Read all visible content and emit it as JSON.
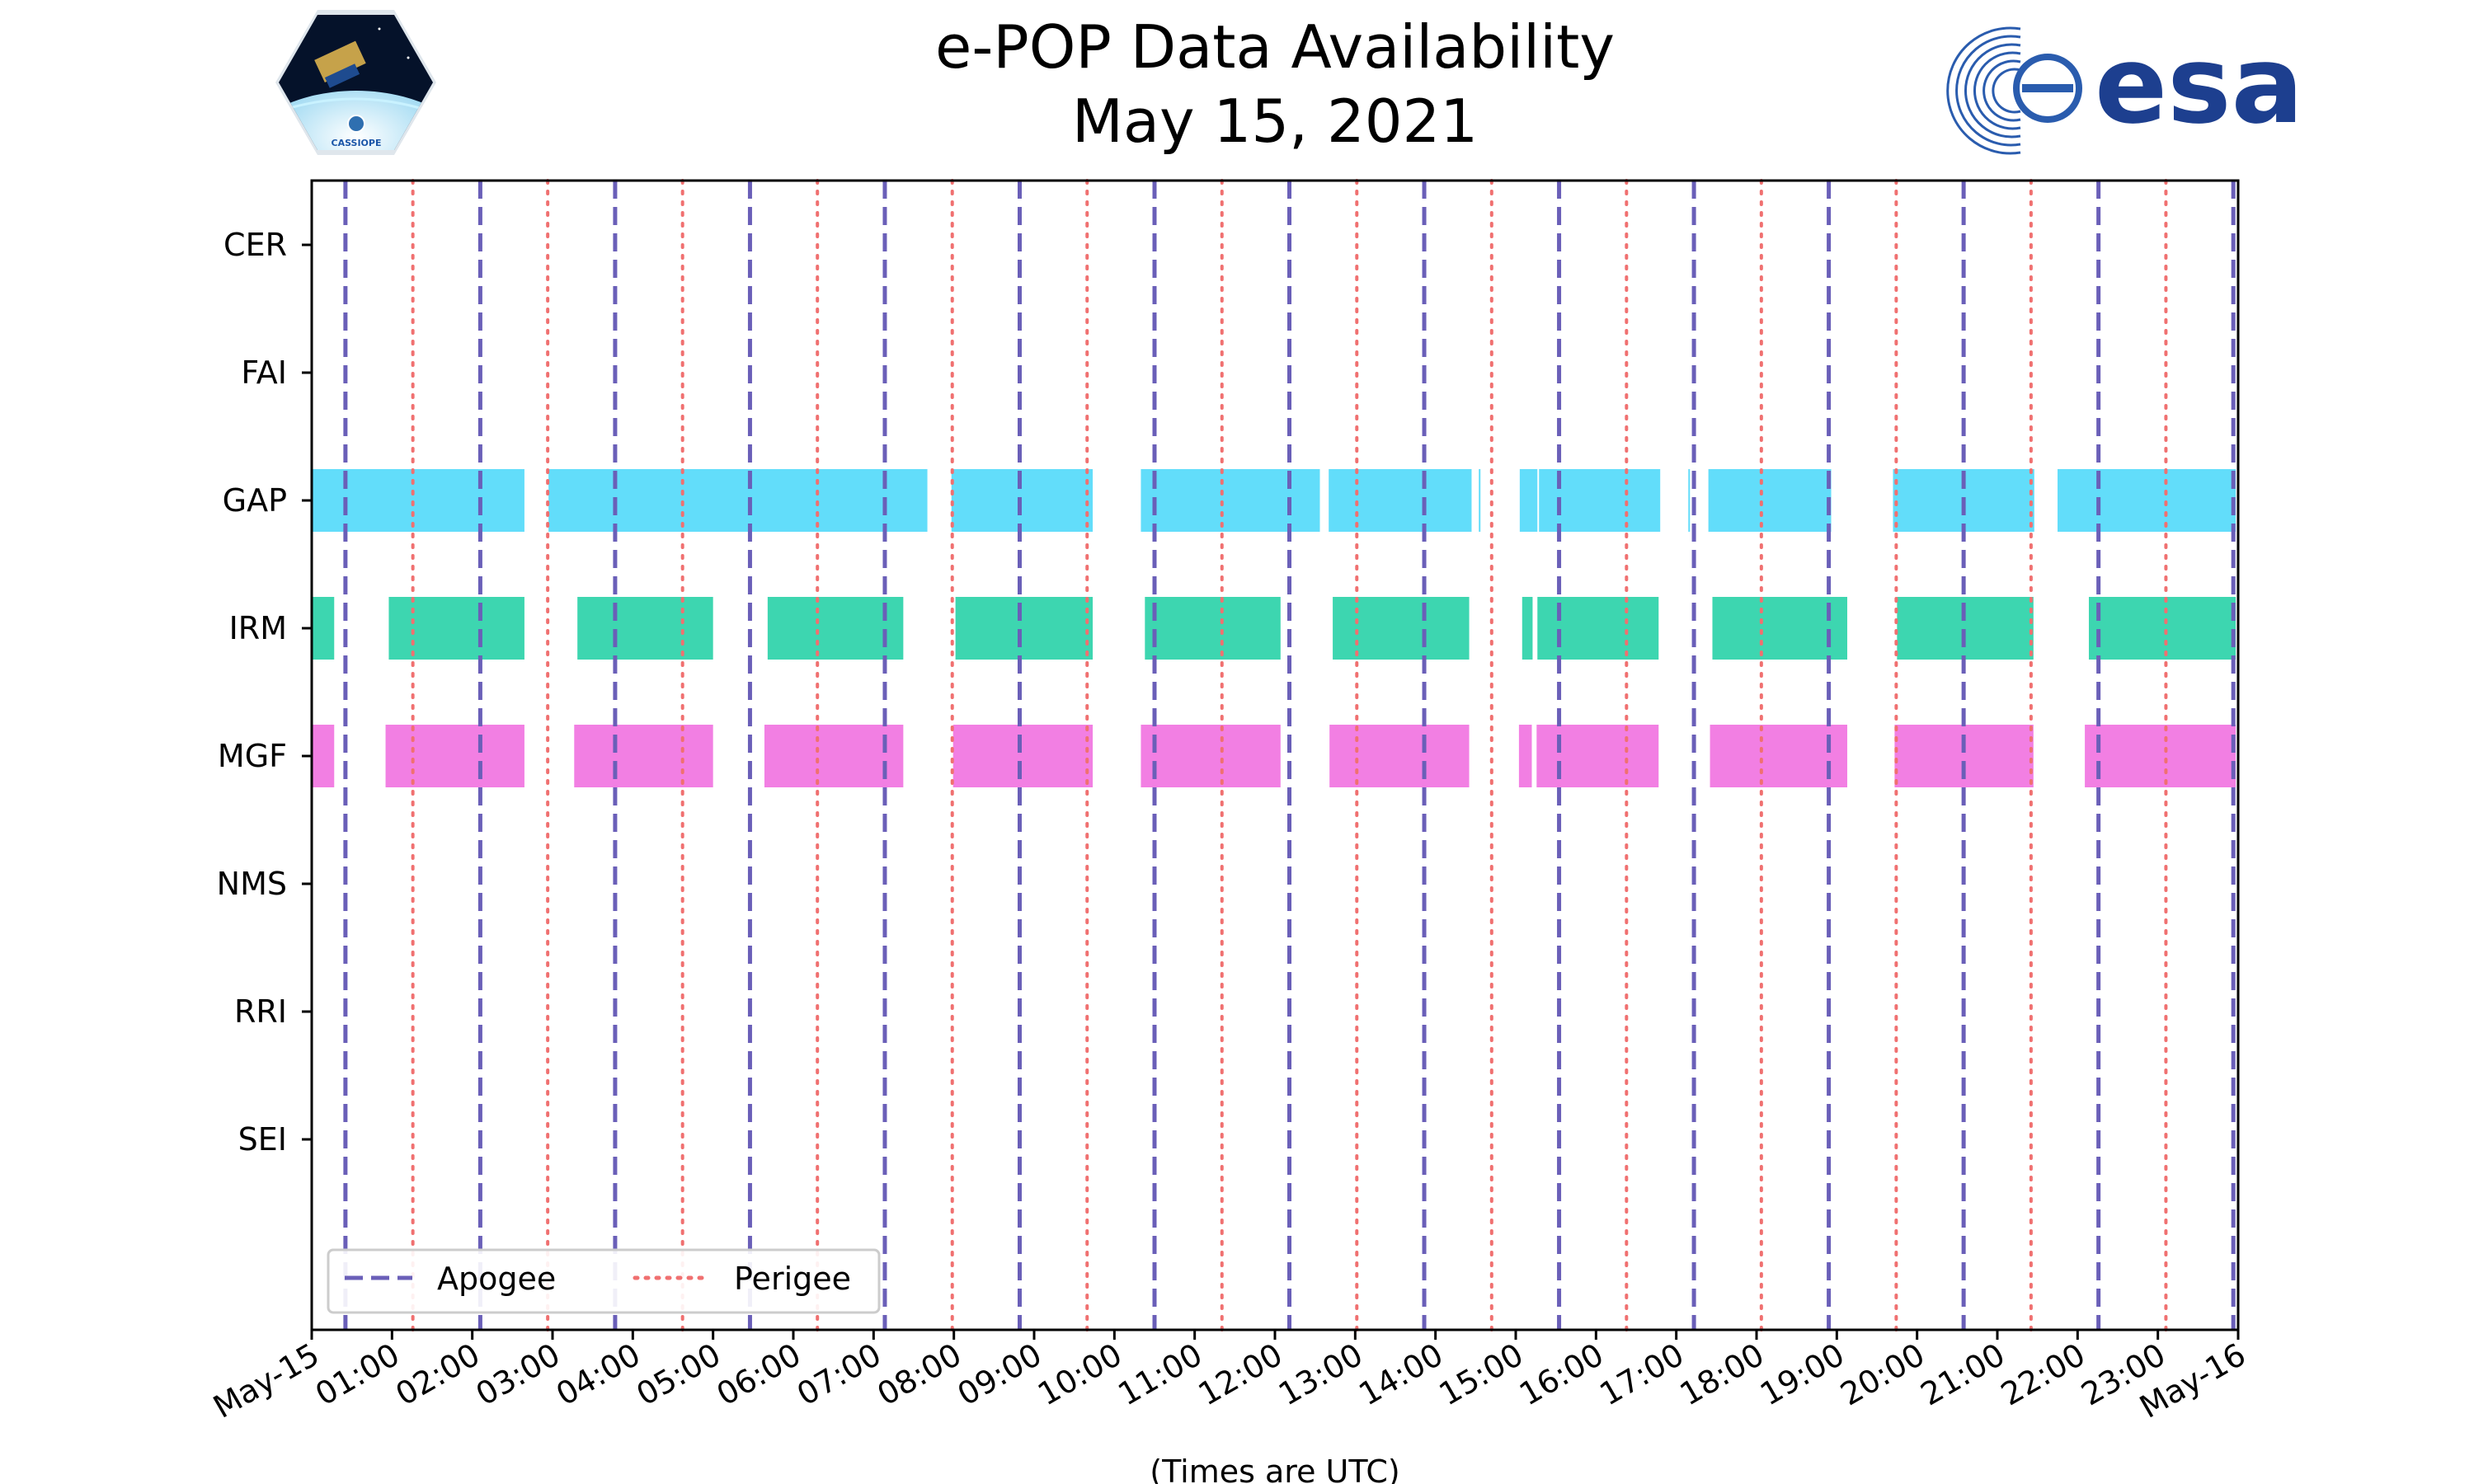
{
  "chart_data": {
    "type": "gantt",
    "title": [
      "e-POP Data Availability",
      "May 15, 2021"
    ],
    "xlabel": "(Times are UTC)",
    "xlim_hours": [
      0,
      24
    ],
    "x_tick_labels": [
      "May-15",
      "01:00",
      "02:00",
      "03:00",
      "04:00",
      "05:00",
      "06:00",
      "07:00",
      "08:00",
      "09:00",
      "10:00",
      "11:00",
      "12:00",
      "13:00",
      "14:00",
      "15:00",
      "16:00",
      "17:00",
      "18:00",
      "19:00",
      "20:00",
      "21:00",
      "22:00",
      "23:00",
      "May-16"
    ],
    "instruments": [
      "CER",
      "FAI",
      "GAP",
      "IRM",
      "MGF",
      "NMS",
      "RRI",
      "SEI"
    ],
    "colors": {
      "GAP": "#62ddfa",
      "IRM": "#3dd6b0",
      "MGF": "#f27fe3",
      "apogee": "#6a5fb8",
      "perigee": "#f07070"
    },
    "availability": {
      "CER": [],
      "FAI": [],
      "GAP": [
        [
          0.0,
          2.65
        ],
        [
          2.95,
          7.67
        ],
        [
          7.97,
          9.73
        ],
        [
          10.33,
          12.56
        ],
        [
          12.67,
          14.45
        ],
        [
          14.54,
          14.56
        ],
        [
          15.05,
          15.27
        ],
        [
          15.29,
          16.8
        ],
        [
          17.15,
          17.17
        ],
        [
          17.4,
          18.93
        ],
        [
          19.7,
          21.46
        ],
        [
          21.75,
          23.97
        ]
      ],
      "IRM": [
        [
          0.0,
          0.28
        ],
        [
          0.96,
          2.65
        ],
        [
          3.31,
          5.0
        ],
        [
          5.68,
          7.37
        ],
        [
          8.02,
          9.73
        ],
        [
          10.38,
          12.07
        ],
        [
          12.72,
          14.42
        ],
        [
          15.08,
          15.21
        ],
        [
          15.27,
          16.78
        ],
        [
          17.45,
          19.13
        ],
        [
          19.75,
          21.45
        ],
        [
          22.14,
          23.97
        ]
      ],
      "MGF": [
        [
          0.0,
          0.28
        ],
        [
          0.92,
          2.65
        ],
        [
          3.27,
          5.0
        ],
        [
          5.64,
          7.37
        ],
        [
          7.99,
          9.73
        ],
        [
          10.33,
          12.07
        ],
        [
          12.68,
          14.42
        ],
        [
          15.04,
          15.2
        ],
        [
          15.26,
          16.78
        ],
        [
          17.42,
          19.13
        ],
        [
          19.72,
          21.45
        ],
        [
          22.09,
          23.97
        ]
      ],
      "NMS": [],
      "RRI": [],
      "SEI": []
    },
    "apogee_times": [
      0.42,
      2.1,
      3.78,
      5.46,
      7.14,
      8.82,
      10.5,
      12.18,
      13.86,
      15.54,
      17.22,
      18.9,
      20.58,
      22.26,
      23.94
    ],
    "perigee_times": [
      1.26,
      2.94,
      4.62,
      6.3,
      7.98,
      9.66,
      11.34,
      13.02,
      14.7,
      16.38,
      18.06,
      19.74,
      21.42,
      23.1
    ],
    "legend": [
      "Apogee",
      "Perigee"
    ],
    "legend_position": "lower-left"
  },
  "logos": {
    "left": "CASSIOPE",
    "right": "esa"
  }
}
